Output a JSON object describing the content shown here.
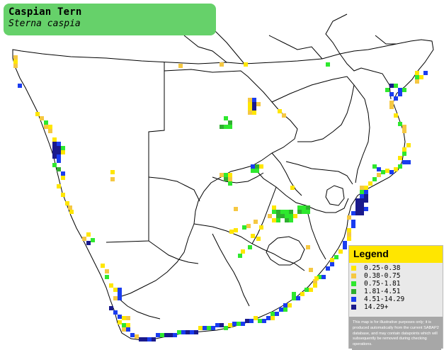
{
  "species": {
    "common_name": "Caspian Tern",
    "scientific_name": "Sterna caspia"
  },
  "legend": {
    "title": "Legend",
    "items": [
      {
        "label": "0.25-0.38",
        "color": "#ffe600"
      },
      {
        "label": "0.38-0.75",
        "color": "#f5c842"
      },
      {
        "label": "0.75-1.81",
        "color": "#2ee82e"
      },
      {
        "label": "1.81-4.51",
        "color": "#2fae2f"
      },
      {
        "label": "4.51-14.29",
        "color": "#1a3cf0"
      },
      {
        "label": "14.29+",
        "color": "#1a1a8c"
      }
    ],
    "disclaimer": "This map is for illustrative purposes only; it is produced automatically from the current SABAP2 database, and may contain datapoints which will subsequently be removed during checking operations."
  },
  "colors": {
    "title_box": "#66d16a",
    "legend_header": "#ffe600",
    "border_lines": "#000000"
  }
}
